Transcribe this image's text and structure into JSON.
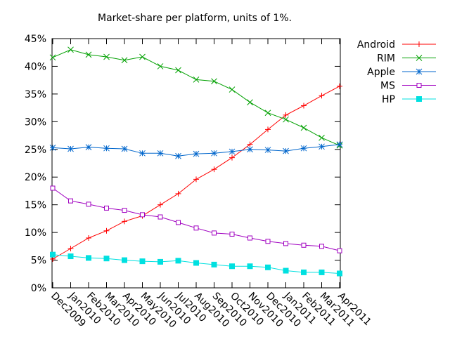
{
  "chart_data": {
    "type": "line",
    "title": "Market-share per platform, units of 1%.",
    "xlabel": "",
    "ylabel": "",
    "categories": [
      "Dec2009",
      "Jan2010",
      "Feb2010",
      "Mar2010",
      "Apr2010",
      "May2010",
      "Jun2010",
      "Jul2010",
      "Aug2010",
      "Sep2010",
      "Oct2010",
      "Nov2010",
      "Dec2010",
      "Jan2011",
      "Feb2011",
      "Mar2011",
      "Apr2011"
    ],
    "ylim": [
      0,
      45
    ],
    "yticks": [
      0,
      5,
      10,
      15,
      20,
      25,
      30,
      35,
      40,
      45
    ],
    "ytick_labels": [
      "0%",
      "5%",
      "10%",
      "15%",
      "20%",
      "25%",
      "30%",
      "35%",
      "40%",
      "45%"
    ],
    "grid": false,
    "legend_position": "top-right outside",
    "series": [
      {
        "name": "Android",
        "color": "#ff0000",
        "marker": "plus",
        "values": [
          5.2,
          7.1,
          9.0,
          10.3,
          12.0,
          13.0,
          15.0,
          17.0,
          19.6,
          21.4,
          23.5,
          25.9,
          28.6,
          31.2,
          32.9,
          34.7,
          36.4
        ]
      },
      {
        "name": "RIM",
        "color": "#00a000",
        "marker": "cross",
        "values": [
          41.6,
          43.0,
          42.1,
          41.7,
          41.1,
          41.7,
          40.0,
          39.3,
          37.6,
          37.3,
          35.8,
          33.5,
          31.6,
          30.4,
          28.9,
          27.1,
          25.7
        ]
      },
      {
        "name": "Apple",
        "color": "#0066cc",
        "marker": "star",
        "values": [
          25.3,
          25.1,
          25.4,
          25.2,
          25.1,
          24.3,
          24.3,
          23.8,
          24.2,
          24.3,
          24.6,
          25.0,
          24.9,
          24.7,
          25.2,
          25.5,
          25.9
        ]
      },
      {
        "name": "MS",
        "color": "#a000c0",
        "marker": "square",
        "values": [
          18.0,
          15.7,
          15.1,
          14.4,
          14.0,
          13.2,
          12.8,
          11.8,
          10.8,
          9.9,
          9.7,
          9.0,
          8.4,
          8.0,
          7.7,
          7.5,
          6.7
        ]
      },
      {
        "name": "HP",
        "color": "#00e0e0",
        "marker": "filled-square",
        "values": [
          6.0,
          5.7,
          5.4,
          5.3,
          5.0,
          4.8,
          4.7,
          4.9,
          4.5,
          4.2,
          3.9,
          3.9,
          3.7,
          3.1,
          2.8,
          2.8,
          2.6
        ]
      }
    ]
  }
}
